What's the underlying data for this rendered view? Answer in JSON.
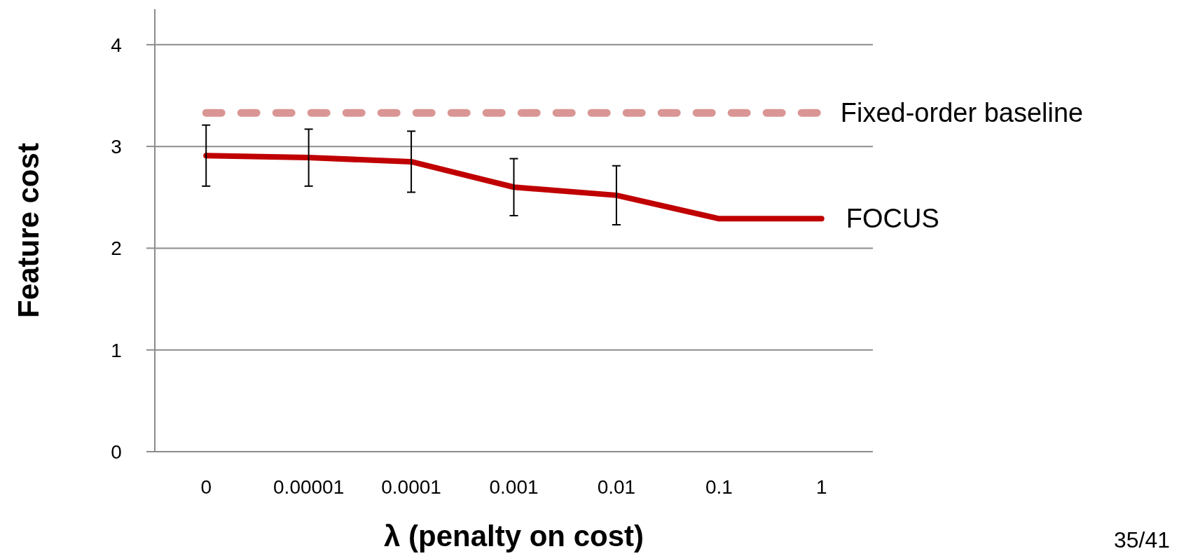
{
  "chart_data": {
    "type": "line",
    "xlabel": "λ (penalty on cost)",
    "ylabel": "Feature cost",
    "categories": [
      "0",
      "0.00001",
      "0.0001",
      "0.001",
      "0.01",
      "0.1",
      "1"
    ],
    "series": [
      {
        "name": "Fixed-order baseline",
        "color": "#d99694",
        "line_style": "dashed",
        "values": [
          3.33,
          3.33,
          3.33,
          3.33,
          3.33,
          3.33,
          3.33
        ]
      },
      {
        "name": "FOCUS",
        "color": "#c00000",
        "line_style": "solid",
        "values": [
          2.91,
          2.89,
          2.85,
          2.6,
          2.52,
          2.29,
          2.29
        ],
        "errors": [
          0.3,
          0.28,
          0.3,
          0.28,
          0.29,
          null,
          null
        ]
      }
    ],
    "ylim": [
      0,
      4.35
    ],
    "yticks": [
      0,
      1,
      2,
      3,
      4
    ],
    "grid": "y",
    "marker": "none",
    "annotations": [
      "35/41"
    ]
  }
}
